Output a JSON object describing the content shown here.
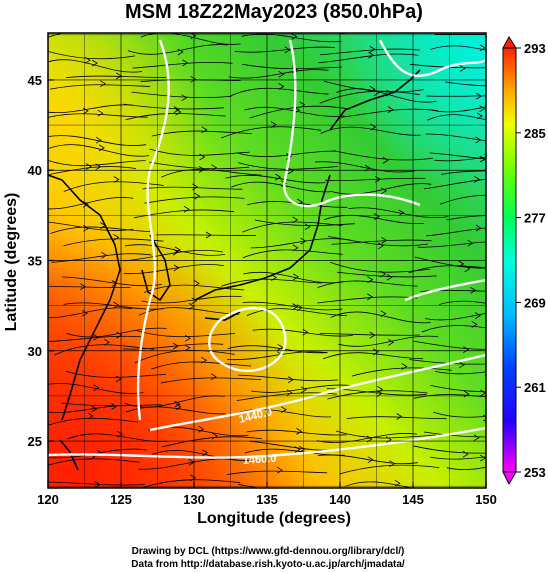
{
  "title": "MSM 18Z22May2023 (850.0hPa)",
  "axes": {
    "xlabel": "Longitude (degrees)",
    "ylabel": "Latitude  (degrees)",
    "xlim": [
      120,
      150
    ],
    "ylim": [
      22.4,
      47.6
    ],
    "xticks": [
      "120",
      "125",
      "130",
      "135",
      "140",
      "145",
      "150"
    ],
    "yticks": [
      "25",
      "30",
      "35",
      "40",
      "45"
    ],
    "grid": true
  },
  "colorbar": {
    "labels": [
      "293",
      "285",
      "277",
      "269",
      "261",
      "253"
    ],
    "range": [
      253,
      293
    ],
    "colors": [
      "#ff00ff",
      "#0000ff",
      "#00aaff",
      "#00ffff",
      "#00ff55",
      "#aaff00",
      "#ffff00",
      "#ffaa00",
      "#ff3300"
    ]
  },
  "contours": [
    {
      "label": "1440.0",
      "lon": 137,
      "lat": 27
    },
    {
      "label": "1460.0",
      "lon": 138,
      "lat": 24.5
    }
  ],
  "credits": {
    "line1": "Drawing by DCL (https://www.gfd-dennou.org/library/dcl/)",
    "line2": "Data from http://database.rish.kyoto-u.ac.jp/arch/jmadata/"
  }
}
